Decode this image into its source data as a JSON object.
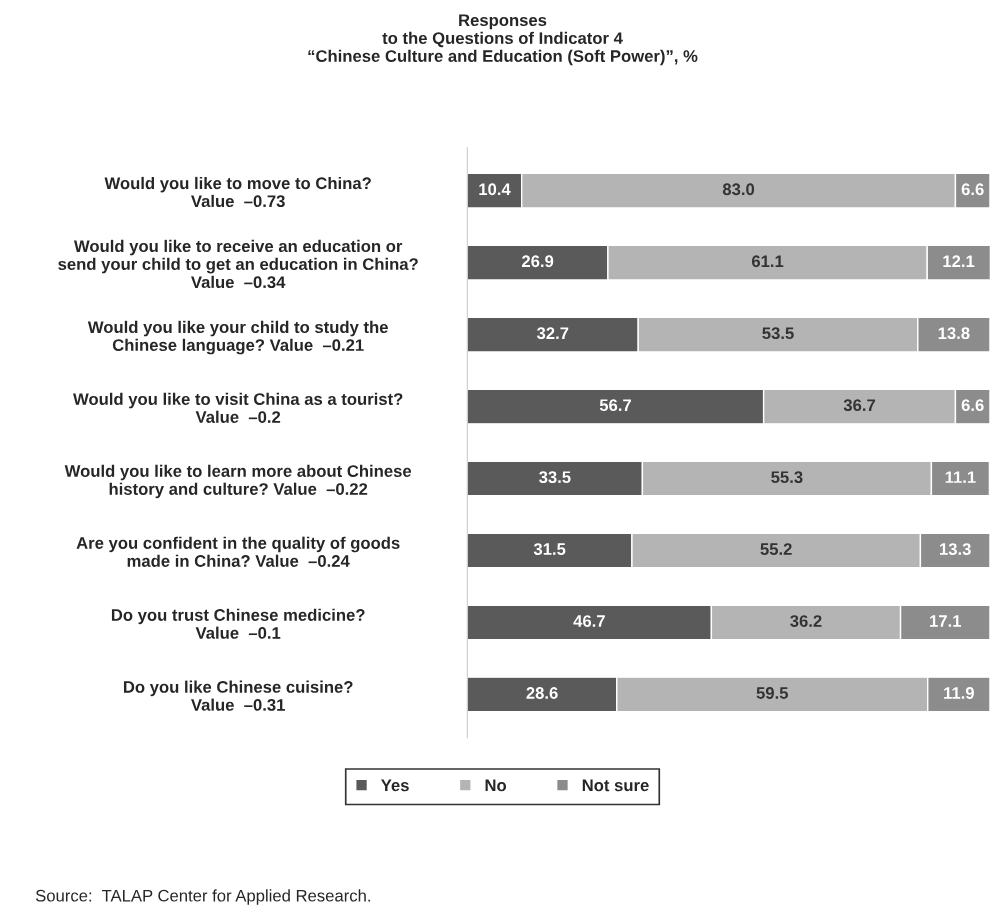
{
  "chart_data": {
    "type": "bar",
    "orientation": "horizontal",
    "stacked": true,
    "title": "Responses\nto the Questions of Indicator 4\n“Chinese Culture and Education (Soft Power)”, %",
    "categories": [
      "Would you like to move to China?\nValue  –0.73",
      "Would you like to receive an education or\nsend your child to get an education in China?\nValue  –0.34",
      "Would you like your child to study the\nChinese language? Value  –0.21",
      "Would you like to visit China as a tourist?\nValue  –0.2",
      "Would you like to learn more about Chinese\nhistory and culture? Value  –0.22",
      "Are you confident in the quality of goods\nmade in China? Value  –0.24",
      "Do you trust Chinese medicine?\nValue  –0.1",
      "Do you like Chinese cuisine?\nValue  –0.31"
    ],
    "series": [
      {
        "name": "Yes",
        "color": "#5a5a5a",
        "values": [
          10.4,
          26.9,
          32.7,
          56.7,
          33.5,
          31.5,
          46.7,
          28.6
        ],
        "value_labels": [
          "10.4",
          "26.9",
          "32.7",
          "56.7",
          "33.5",
          "31.5",
          "46.7",
          "28.6"
        ]
      },
      {
        "name": "No",
        "color": "#b4b4b4",
        "values": [
          83.0,
          61.1,
          53.5,
          36.7,
          55.3,
          55.2,
          36.2,
          59.5
        ],
        "value_labels": [
          "83.0",
          "61.1",
          "53.5",
          "36.7",
          "55.3",
          "55.2",
          "36.2",
          "59.5"
        ]
      },
      {
        "name": "Not sure",
        "color": "#8c8c8c",
        "values": [
          6.6,
          12.1,
          13.8,
          6.6,
          11.1,
          13.3,
          17.1,
          11.9
        ],
        "value_labels": [
          "6.6",
          "12.1",
          "13.8",
          "6.6",
          "11.1",
          "13.3",
          "17.1",
          "11.9"
        ]
      }
    ],
    "xlim": [
      0,
      100
    ],
    "legend": "bottom",
    "tick_labels": "y",
    "annotations": [
      "Source:  TALAP Center for Applied Research."
    ]
  }
}
